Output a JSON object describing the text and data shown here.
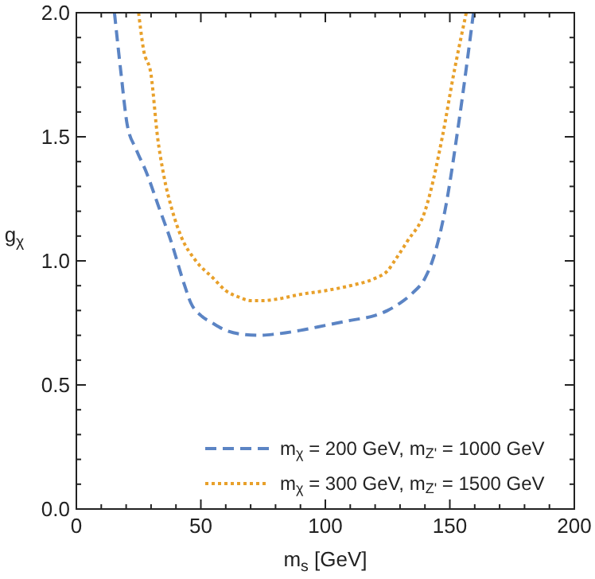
{
  "chart_data": {
    "type": "line",
    "xlabel": "m$_{s}$ [GeV]",
    "ylabel": "g$_{χ}$",
    "xlim": [
      0,
      200
    ],
    "ylim": [
      0,
      2
    ],
    "xticks": [
      0,
      {
        "value": 10,
        "label": null
      },
      {
        "value": 20,
        "label": null
      },
      {
        "value": 30,
        "label": null
      },
      {
        "value": 40,
        "label": null
      },
      50,
      {
        "value": 60,
        "label": null
      },
      {
        "value": 70,
        "label": null
      },
      {
        "value": 80,
        "label": null
      },
      {
        "value": 90,
        "label": null
      },
      100,
      {
        "value": 110,
        "label": null
      },
      {
        "value": 120,
        "label": null
      },
      {
        "value": 130,
        "label": null
      },
      {
        "value": 140,
        "label": null
      },
      150,
      {
        "value": 160,
        "label": null
      },
      {
        "value": 170,
        "label": null
      },
      {
        "value": 180,
        "label": null
      },
      {
        "value": 190,
        "label": null
      },
      200
    ],
    "yticks": [
      {
        "value": 0,
        "label": "0.0"
      },
      {
        "value": 0.1,
        "label": null
      },
      {
        "value": 0.2,
        "label": null
      },
      {
        "value": 0.3,
        "label": null
      },
      {
        "value": 0.4,
        "label": null
      },
      0.5,
      {
        "value": 0.6,
        "label": null
      },
      {
        "value": 0.7,
        "label": null
      },
      {
        "value": 0.8,
        "label": null
      },
      {
        "value": 0.9,
        "label": null
      },
      {
        "value": 1,
        "label": "1.0"
      },
      {
        "value": 1.1,
        "label": null
      },
      {
        "value": 1.2,
        "label": null
      },
      {
        "value": 1.3,
        "label": null
      },
      {
        "value": 1.4,
        "label": null
      },
      1.5,
      {
        "value": 1.6,
        "label": null
      },
      {
        "value": 1.7,
        "label": null
      },
      {
        "value": 1.8,
        "label": null
      },
      {
        "value": 1.9,
        "label": null
      },
      {
        "value": 2,
        "label": "2.0"
      }
    ],
    "legend": "bottom right",
    "grid": false,
    "series": [
      {
        "name": "m$_{χ}$ = 200 GeV, m$_{Z'}$ = 1000 GeV",
        "color": "#5b84c4",
        "line_style": "dashed",
        "x": [
          15.3,
          18,
          20.4,
          24,
          28,
          33,
          38,
          43.5,
          46,
          50,
          54.6,
          60,
          66,
          73.7,
          80,
          90,
          100,
          110,
          120,
          125,
          130,
          135,
          140,
          143,
          148,
          153.5,
          159.5
        ],
        "values": [
          2,
          1.75,
          1.55,
          1.45,
          1.36,
          1.22,
          1.08,
          0.9,
          0.83,
          0.78,
          0.75,
          0.72,
          0.705,
          0.7,
          0.705,
          0.72,
          0.74,
          0.76,
          0.78,
          0.8,
          0.83,
          0.87,
          0.93,
          1.0,
          1.2,
          1.55,
          2
        ]
      },
      {
        "name": "m$_{χ}$ = 300 GeV, m$_{Z'}$ = 1500 GeV",
        "color": "#e8a02a",
        "line_style": "dotted",
        "x": [
          25,
          27,
          30,
          32.6,
          35,
          38.6,
          42,
          48,
          55,
          60,
          65,
          70,
          75,
          80,
          90,
          100,
          110,
          120,
          125,
          127.8,
          133,
          140,
          147,
          151.5,
          156.6
        ],
        "values": [
          2,
          1.85,
          1.75,
          1.5,
          1.35,
          1.2,
          1.1,
          1.0,
          0.93,
          0.88,
          0.855,
          0.84,
          0.84,
          0.845,
          0.865,
          0.88,
          0.9,
          0.93,
          0.96,
          1.0,
          1.08,
          1.2,
          1.5,
          1.75,
          2
        ]
      }
    ]
  }
}
